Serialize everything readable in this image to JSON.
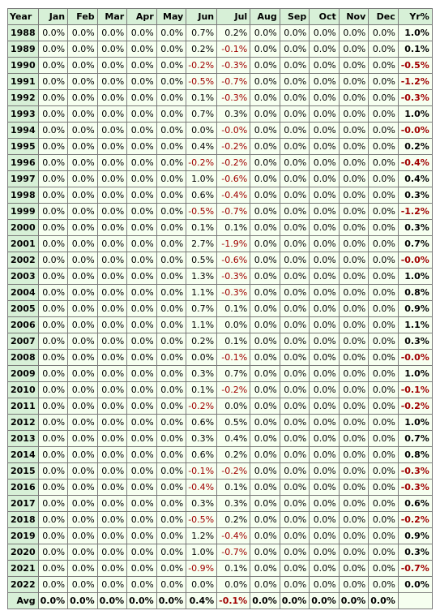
{
  "table": {
    "headers": [
      "Year",
      "Jan",
      "Feb",
      "Mar",
      "Apr",
      "May",
      "Jun",
      "Jul",
      "Aug",
      "Sep",
      "Oct",
      "Nov",
      "Dec",
      "Yr%"
    ],
    "rows": [
      {
        "year": "1988",
        "months": [
          "0.0%",
          "0.0%",
          "0.0%",
          "0.0%",
          "0.0%",
          "0.7%",
          "0.2%",
          "0.0%",
          "0.0%",
          "0.0%",
          "0.0%",
          "0.0%"
        ],
        "yr": "1.0%"
      },
      {
        "year": "1989",
        "months": [
          "0.0%",
          "0.0%",
          "0.0%",
          "0.0%",
          "0.0%",
          "0.2%",
          "-0.1%",
          "0.0%",
          "0.0%",
          "0.0%",
          "0.0%",
          "0.0%"
        ],
        "yr": "0.1%"
      },
      {
        "year": "1990",
        "months": [
          "0.0%",
          "0.0%",
          "0.0%",
          "0.0%",
          "0.0%",
          "-0.2%",
          "-0.3%",
          "0.0%",
          "0.0%",
          "0.0%",
          "0.0%",
          "0.0%"
        ],
        "yr": "-0.5%"
      },
      {
        "year": "1991",
        "months": [
          "0.0%",
          "0.0%",
          "0.0%",
          "0.0%",
          "0.0%",
          "-0.5%",
          "-0.7%",
          "0.0%",
          "0.0%",
          "0.0%",
          "0.0%",
          "0.0%"
        ],
        "yr": "-1.2%"
      },
      {
        "year": "1992",
        "months": [
          "0.0%",
          "0.0%",
          "0.0%",
          "0.0%",
          "0.0%",
          "0.1%",
          "-0.3%",
          "0.0%",
          "0.0%",
          "0.0%",
          "0.0%",
          "0.0%"
        ],
        "yr": "-0.3%"
      },
      {
        "year": "1993",
        "months": [
          "0.0%",
          "0.0%",
          "0.0%",
          "0.0%",
          "0.0%",
          "0.7%",
          "0.3%",
          "0.0%",
          "0.0%",
          "0.0%",
          "0.0%",
          "0.0%"
        ],
        "yr": "1.0%"
      },
      {
        "year": "1994",
        "months": [
          "0.0%",
          "0.0%",
          "0.0%",
          "0.0%",
          "0.0%",
          "0.0%",
          "-0.0%",
          "0.0%",
          "0.0%",
          "0.0%",
          "0.0%",
          "0.0%"
        ],
        "yr": "-0.0%"
      },
      {
        "year": "1995",
        "months": [
          "0.0%",
          "0.0%",
          "0.0%",
          "0.0%",
          "0.0%",
          "0.4%",
          "-0.2%",
          "0.0%",
          "0.0%",
          "0.0%",
          "0.0%",
          "0.0%"
        ],
        "yr": "0.2%"
      },
      {
        "year": "1996",
        "months": [
          "0.0%",
          "0.0%",
          "0.0%",
          "0.0%",
          "0.0%",
          "-0.2%",
          "-0.2%",
          "0.0%",
          "0.0%",
          "0.0%",
          "0.0%",
          "0.0%"
        ],
        "yr": "-0.4%"
      },
      {
        "year": "1997",
        "months": [
          "0.0%",
          "0.0%",
          "0.0%",
          "0.0%",
          "0.0%",
          "1.0%",
          "-0.6%",
          "0.0%",
          "0.0%",
          "0.0%",
          "0.0%",
          "0.0%"
        ],
        "yr": "0.4%"
      },
      {
        "year": "1998",
        "months": [
          "0.0%",
          "0.0%",
          "0.0%",
          "0.0%",
          "0.0%",
          "0.6%",
          "-0.4%",
          "0.0%",
          "0.0%",
          "0.0%",
          "0.0%",
          "0.0%"
        ],
        "yr": "0.3%"
      },
      {
        "year": "1999",
        "months": [
          "0.0%",
          "0.0%",
          "0.0%",
          "0.0%",
          "0.0%",
          "-0.5%",
          "-0.7%",
          "0.0%",
          "0.0%",
          "0.0%",
          "0.0%",
          "0.0%"
        ],
        "yr": "-1.2%"
      },
      {
        "year": "2000",
        "months": [
          "0.0%",
          "0.0%",
          "0.0%",
          "0.0%",
          "0.0%",
          "0.1%",
          "0.1%",
          "0.0%",
          "0.0%",
          "0.0%",
          "0.0%",
          "0.0%"
        ],
        "yr": "0.3%"
      },
      {
        "year": "2001",
        "months": [
          "0.0%",
          "0.0%",
          "0.0%",
          "0.0%",
          "0.0%",
          "2.7%",
          "-1.9%",
          "0.0%",
          "0.0%",
          "0.0%",
          "0.0%",
          "0.0%"
        ],
        "yr": "0.7%"
      },
      {
        "year": "2002",
        "months": [
          "0.0%",
          "0.0%",
          "0.0%",
          "0.0%",
          "0.0%",
          "0.5%",
          "-0.6%",
          "0.0%",
          "0.0%",
          "0.0%",
          "0.0%",
          "0.0%"
        ],
        "yr": "-0.0%"
      },
      {
        "year": "2003",
        "months": [
          "0.0%",
          "0.0%",
          "0.0%",
          "0.0%",
          "0.0%",
          "1.3%",
          "-0.3%",
          "0.0%",
          "0.0%",
          "0.0%",
          "0.0%",
          "0.0%"
        ],
        "yr": "1.0%"
      },
      {
        "year": "2004",
        "months": [
          "0.0%",
          "0.0%",
          "0.0%",
          "0.0%",
          "0.0%",
          "1.1%",
          "-0.3%",
          "0.0%",
          "0.0%",
          "0.0%",
          "0.0%",
          "0.0%"
        ],
        "yr": "0.8%"
      },
      {
        "year": "2005",
        "months": [
          "0.0%",
          "0.0%",
          "0.0%",
          "0.0%",
          "0.0%",
          "0.7%",
          "0.1%",
          "0.0%",
          "0.0%",
          "0.0%",
          "0.0%",
          "0.0%"
        ],
        "yr": "0.9%"
      },
      {
        "year": "2006",
        "months": [
          "0.0%",
          "0.0%",
          "0.0%",
          "0.0%",
          "0.0%",
          "1.1%",
          "0.0%",
          "0.0%",
          "0.0%",
          "0.0%",
          "0.0%",
          "0.0%"
        ],
        "yr": "1.1%"
      },
      {
        "year": "2007",
        "months": [
          "0.0%",
          "0.0%",
          "0.0%",
          "0.0%",
          "0.0%",
          "0.2%",
          "0.1%",
          "0.0%",
          "0.0%",
          "0.0%",
          "0.0%",
          "0.0%"
        ],
        "yr": "0.3%"
      },
      {
        "year": "2008",
        "months": [
          "0.0%",
          "0.0%",
          "0.0%",
          "0.0%",
          "0.0%",
          "0.0%",
          "-0.1%",
          "0.0%",
          "0.0%",
          "0.0%",
          "0.0%",
          "0.0%"
        ],
        "yr": "-0.0%"
      },
      {
        "year": "2009",
        "months": [
          "0.0%",
          "0.0%",
          "0.0%",
          "0.0%",
          "0.0%",
          "0.3%",
          "0.7%",
          "0.0%",
          "0.0%",
          "0.0%",
          "0.0%",
          "0.0%"
        ],
        "yr": "1.0%"
      },
      {
        "year": "2010",
        "months": [
          "0.0%",
          "0.0%",
          "0.0%",
          "0.0%",
          "0.0%",
          "0.1%",
          "-0.2%",
          "0.0%",
          "0.0%",
          "0.0%",
          "0.0%",
          "0.0%"
        ],
        "yr": "-0.1%"
      },
      {
        "year": "2011",
        "months": [
          "0.0%",
          "0.0%",
          "0.0%",
          "0.0%",
          "0.0%",
          "-0.2%",
          "0.0%",
          "0.0%",
          "0.0%",
          "0.0%",
          "0.0%",
          "0.0%"
        ],
        "yr": "-0.2%"
      },
      {
        "year": "2012",
        "months": [
          "0.0%",
          "0.0%",
          "0.0%",
          "0.0%",
          "0.0%",
          "0.6%",
          "0.5%",
          "0.0%",
          "0.0%",
          "0.0%",
          "0.0%",
          "0.0%"
        ],
        "yr": "1.0%"
      },
      {
        "year": "2013",
        "months": [
          "0.0%",
          "0.0%",
          "0.0%",
          "0.0%",
          "0.0%",
          "0.3%",
          "0.4%",
          "0.0%",
          "0.0%",
          "0.0%",
          "0.0%",
          "0.0%"
        ],
        "yr": "0.7%"
      },
      {
        "year": "2014",
        "months": [
          "0.0%",
          "0.0%",
          "0.0%",
          "0.0%",
          "0.0%",
          "0.6%",
          "0.2%",
          "0.0%",
          "0.0%",
          "0.0%",
          "0.0%",
          "0.0%"
        ],
        "yr": "0.8%"
      },
      {
        "year": "2015",
        "months": [
          "0.0%",
          "0.0%",
          "0.0%",
          "0.0%",
          "0.0%",
          "-0.1%",
          "-0.2%",
          "0.0%",
          "0.0%",
          "0.0%",
          "0.0%",
          "0.0%"
        ],
        "yr": "-0.3%"
      },
      {
        "year": "2016",
        "months": [
          "0.0%",
          "0.0%",
          "0.0%",
          "0.0%",
          "0.0%",
          "-0.4%",
          "0.1%",
          "0.0%",
          "0.0%",
          "0.0%",
          "0.0%",
          "0.0%"
        ],
        "yr": "-0.3%"
      },
      {
        "year": "2017",
        "months": [
          "0.0%",
          "0.0%",
          "0.0%",
          "0.0%",
          "0.0%",
          "0.3%",
          "0.3%",
          "0.0%",
          "0.0%",
          "0.0%",
          "0.0%",
          "0.0%"
        ],
        "yr": "0.6%"
      },
      {
        "year": "2018",
        "months": [
          "0.0%",
          "0.0%",
          "0.0%",
          "0.0%",
          "0.0%",
          "-0.5%",
          "0.2%",
          "0.0%",
          "0.0%",
          "0.0%",
          "0.0%",
          "0.0%"
        ],
        "yr": "-0.2%"
      },
      {
        "year": "2019",
        "months": [
          "0.0%",
          "0.0%",
          "0.0%",
          "0.0%",
          "0.0%",
          "1.2%",
          "-0.4%",
          "0.0%",
          "0.0%",
          "0.0%",
          "0.0%",
          "0.0%"
        ],
        "yr": "0.9%"
      },
      {
        "year": "2020",
        "months": [
          "0.0%",
          "0.0%",
          "0.0%",
          "0.0%",
          "0.0%",
          "1.0%",
          "-0.7%",
          "0.0%",
          "0.0%",
          "0.0%",
          "0.0%",
          "0.0%"
        ],
        "yr": "0.3%"
      },
      {
        "year": "2021",
        "months": [
          "0.0%",
          "0.0%",
          "0.0%",
          "0.0%",
          "0.0%",
          "-0.9%",
          "0.1%",
          "0.0%",
          "0.0%",
          "0.0%",
          "0.0%",
          "0.0%"
        ],
        "yr": "-0.7%"
      },
      {
        "year": "2022",
        "months": [
          "0.0%",
          "0.0%",
          "0.0%",
          "0.0%",
          "0.0%",
          "0.0%",
          "0.0%",
          "0.0%",
          "0.0%",
          "0.0%",
          "0.0%",
          "0.0%"
        ],
        "yr": "0.0%"
      }
    ],
    "avg": {
      "label": "Avg",
      "months": [
        "0.0%",
        "0.0%",
        "0.0%",
        "0.0%",
        "0.0%",
        "0.4%",
        "-0.1%",
        "0.0%",
        "0.0%",
        "0.0%",
        "0.0%",
        "0.0%"
      ],
      "yr": ""
    }
  },
  "colors": {
    "header_bg": "#d7f0d7",
    "cell_bg": "#f6fff0",
    "negative_text": "#a00000",
    "border": "#7a7a7a"
  }
}
